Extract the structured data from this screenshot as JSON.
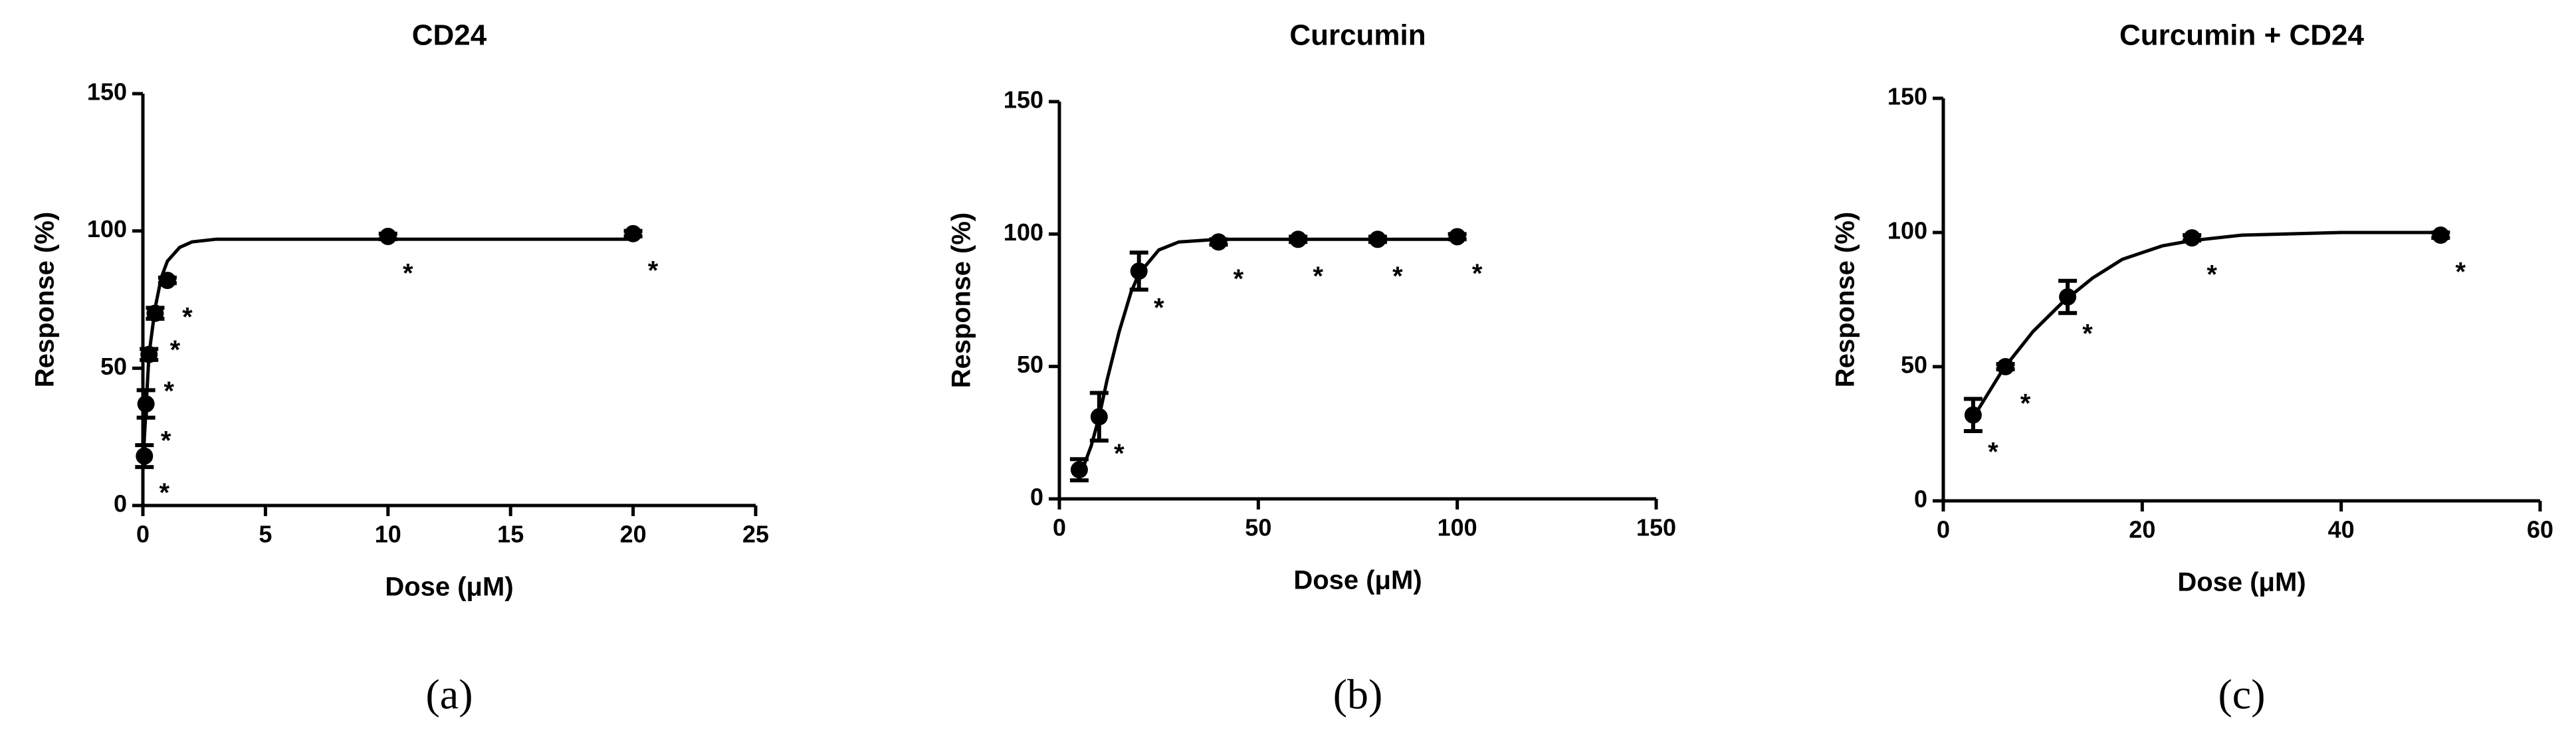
{
  "chart_data": [
    {
      "type": "scatter",
      "title": "CD24",
      "x_label": "Dose (μM)",
      "y_label": "Response (%)",
      "panel_label": "(a)",
      "x": [
        0.0625,
        0.125,
        0.25,
        0.5,
        1,
        10,
        20
      ],
      "values": [
        18,
        37,
        55,
        70,
        82,
        98,
        99
      ],
      "errors": [
        4,
        5,
        2,
        2,
        1,
        1,
        1
      ],
      "point_labels": [
        "*",
        "*",
        "*",
        "*",
        "*",
        "*",
        "*"
      ],
      "curve": {
        "x": [
          0,
          0.25,
          0.5,
          0.75,
          1,
          1.5,
          2,
          3,
          5,
          10,
          20
        ],
        "y": [
          15,
          55,
          72,
          83,
          89,
          94,
          96,
          97,
          97,
          97,
          97
        ]
      },
      "xlim": [
        0,
        25
      ],
      "xticks": [
        0,
        5,
        10,
        15,
        20,
        25
      ],
      "ylim": [
        0,
        150
      ],
      "yticks": [
        0,
        50,
        100,
        150
      ],
      "color": "#000000"
    },
    {
      "type": "scatter",
      "title": "Curcumin",
      "x_label": "Dose (μM)",
      "y_label": "Response (%)",
      "panel_label": "(b)",
      "x": [
        5,
        10,
        20,
        40,
        60,
        80,
        100
      ],
      "values": [
        11,
        31,
        86,
        97,
        98,
        98,
        99
      ],
      "errors": [
        4,
        9,
        7,
        1,
        1,
        1,
        1
      ],
      "point_labels": [
        null,
        "*",
        "*",
        "*",
        "*",
        "*",
        "*"
      ],
      "curve": {
        "x": [
          5,
          8,
          10,
          12,
          15,
          18,
          20,
          25,
          30,
          40,
          60,
          100
        ],
        "y": [
          8,
          20,
          31,
          45,
          63,
          78,
          85,
          94,
          97,
          98,
          98,
          98
        ]
      },
      "xlim": [
        0,
        150
      ],
      "xticks": [
        0,
        50,
        100,
        150
      ],
      "ylim": [
        0,
        150
      ],
      "yticks": [
        0,
        50,
        100,
        150
      ],
      "color": "#000000"
    },
    {
      "type": "scatter",
      "title": "Curcumin + CD24",
      "x_label": "Dose (μM)",
      "y_label": "Response (%)",
      "panel_label": "(c)",
      "x": [
        3,
        6.25,
        12.5,
        25,
        50
      ],
      "values": [
        32,
        50,
        76,
        98,
        99
      ],
      "errors": [
        6,
        1,
        6,
        1,
        1
      ],
      "point_labels": [
        "*",
        "*",
        "*",
        "*",
        "*"
      ],
      "curve": {
        "x": [
          3,
          6,
          9,
          12,
          15,
          18,
          22,
          25,
          30,
          40,
          50
        ],
        "y": [
          31,
          49,
          63,
          74,
          83,
          90,
          95,
          97,
          99,
          100,
          100
        ]
      },
      "xlim": [
        0,
        60
      ],
      "xticks": [
        0,
        20,
        40,
        60
      ],
      "ylim": [
        0,
        150
      ],
      "yticks": [
        0,
        50,
        100,
        150
      ],
      "color": "#000000"
    }
  ]
}
